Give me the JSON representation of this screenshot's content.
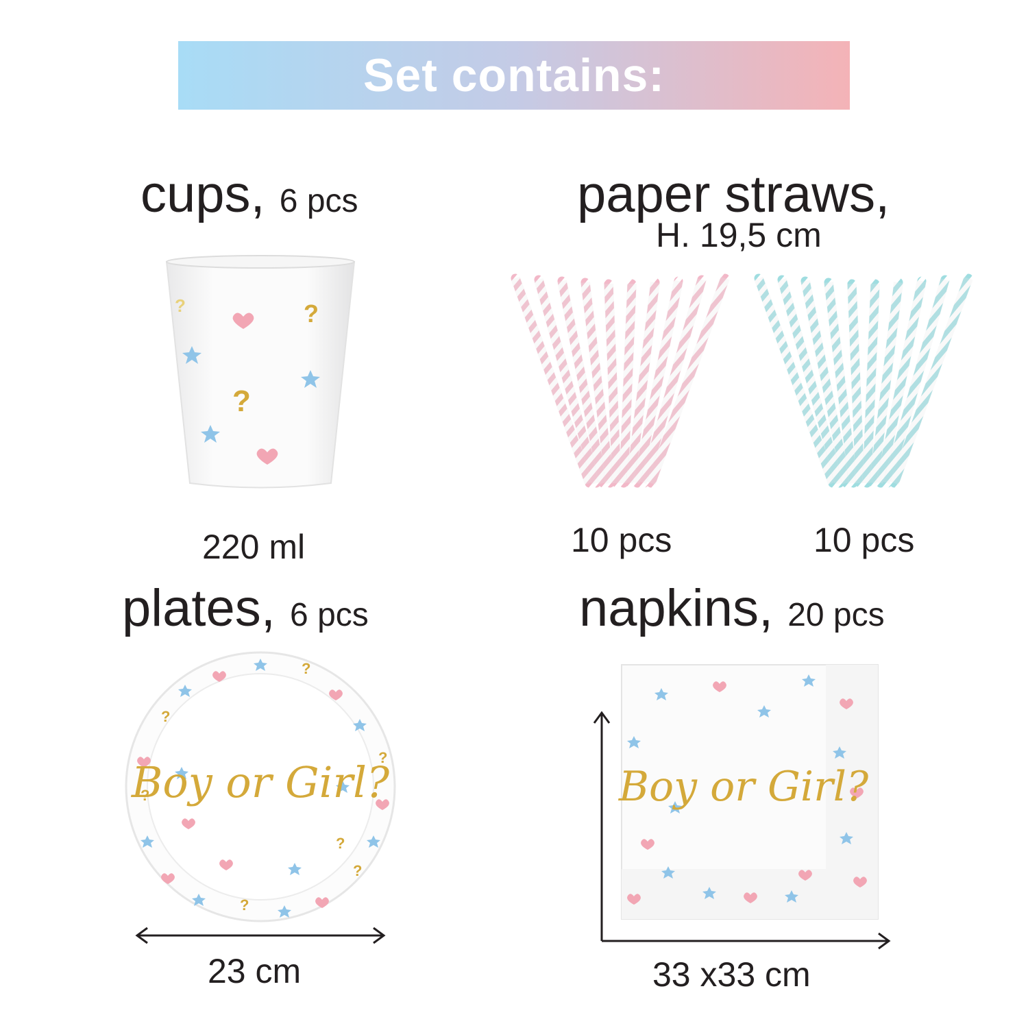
{
  "banner": {
    "title": "Set contains:"
  },
  "items": {
    "cups": {
      "name": "cups,",
      "qty": "6 pcs",
      "size": "220 ml"
    },
    "straws": {
      "name": "paper straws,",
      "size": "H. 19,5 cm",
      "pink_qty": "10 pcs",
      "blue_qty": "10 pcs"
    },
    "plates": {
      "name": "plates,",
      "qty": "6 pcs",
      "size": "23 cm",
      "print": "Boy or Girl?"
    },
    "napkins": {
      "name": "napkins,",
      "qty": "20 pcs",
      "size": "33 x33 cm",
      "print": "Boy or Girl?"
    }
  },
  "colors": {
    "pink": "#f2b8c8",
    "blue": "#9fdde0",
    "gold": "#d4a93a",
    "star_blue": "#8fc4e8"
  },
  "icons": [
    "heart-icon",
    "star-icon",
    "question-mark-icon",
    "double-arrow-icon"
  ]
}
